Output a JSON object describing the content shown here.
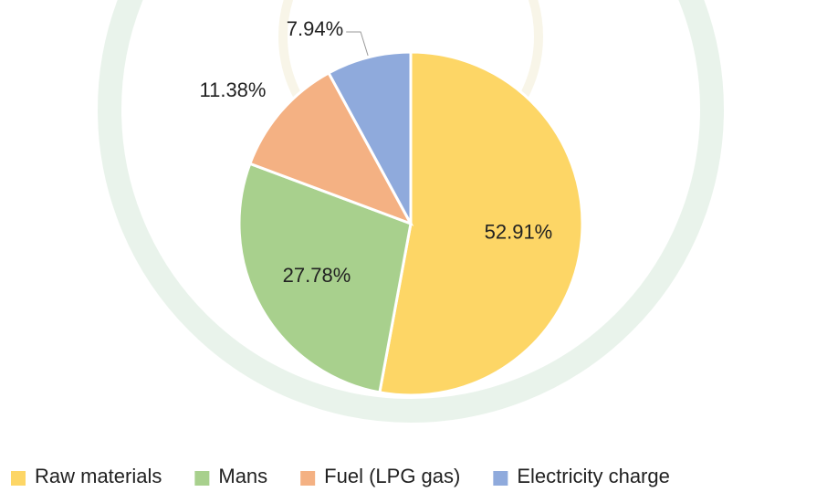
{
  "chart_data": {
    "type": "pie",
    "categories": [
      "Raw materials",
      "Mans",
      "Fuel (LPG gas)",
      "Electricity charge"
    ],
    "values": [
      52.91,
      27.78,
      11.38,
      7.94
    ],
    "value_labels": [
      "52.91%",
      "27.78%",
      "11.38%",
      "7.94%"
    ],
    "colors": [
      "#fdd666",
      "#a8d08d",
      "#f4b183",
      "#8faadc"
    ],
    "legend": "bottom"
  }
}
